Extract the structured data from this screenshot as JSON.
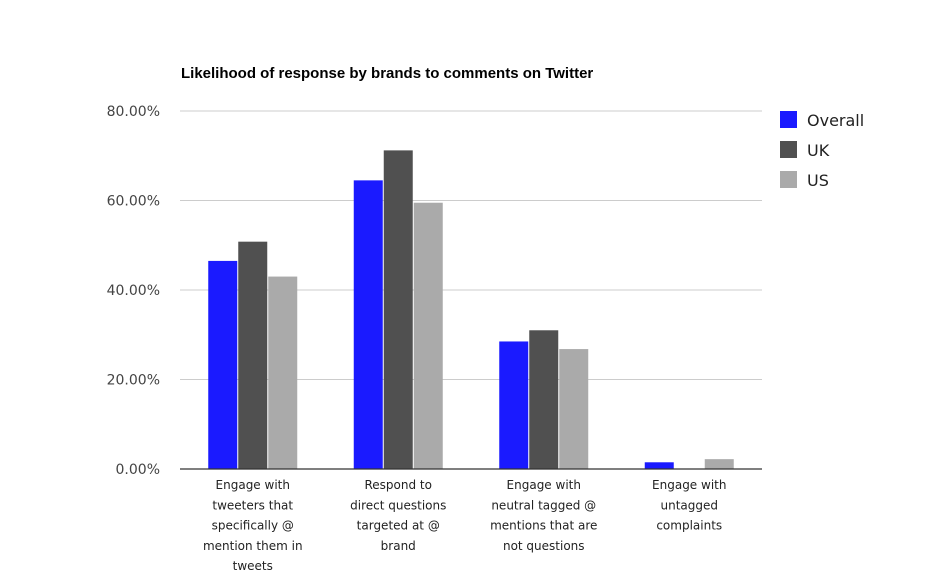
{
  "chart_data": {
    "type": "bar",
    "title": "Likelihood of response by brands to comments on Twitter",
    "categories": [
      [
        "Engage with",
        "tweeters that",
        "specifically @",
        "mention them in",
        "tweets"
      ],
      [
        "Respond to",
        "direct questions",
        "targeted at @",
        "brand"
      ],
      [
        "Engage with",
        "neutral tagged @",
        "mentions that are",
        "not questions"
      ],
      [
        "Engage with",
        "untagged",
        "complaints"
      ]
    ],
    "series": [
      {
        "name": "Overall",
        "color": "#1a1aff",
        "values": [
          46.5,
          64.5,
          28.5,
          1.5
        ]
      },
      {
        "name": "UK",
        "color": "#505050",
        "values": [
          50.8,
          71.2,
          31.0,
          0
        ]
      },
      {
        "name": "US",
        "color": "#aaaaaa",
        "values": [
          43.0,
          59.5,
          26.8,
          2.2
        ]
      }
    ],
    "ylim": [
      0,
      80
    ],
    "yticks": [
      "0.00%",
      "20.00%",
      "40.00%",
      "60.00%",
      "80.00%"
    ],
    "xlabel": "",
    "ylabel": "",
    "grid": true,
    "legend": "right"
  }
}
